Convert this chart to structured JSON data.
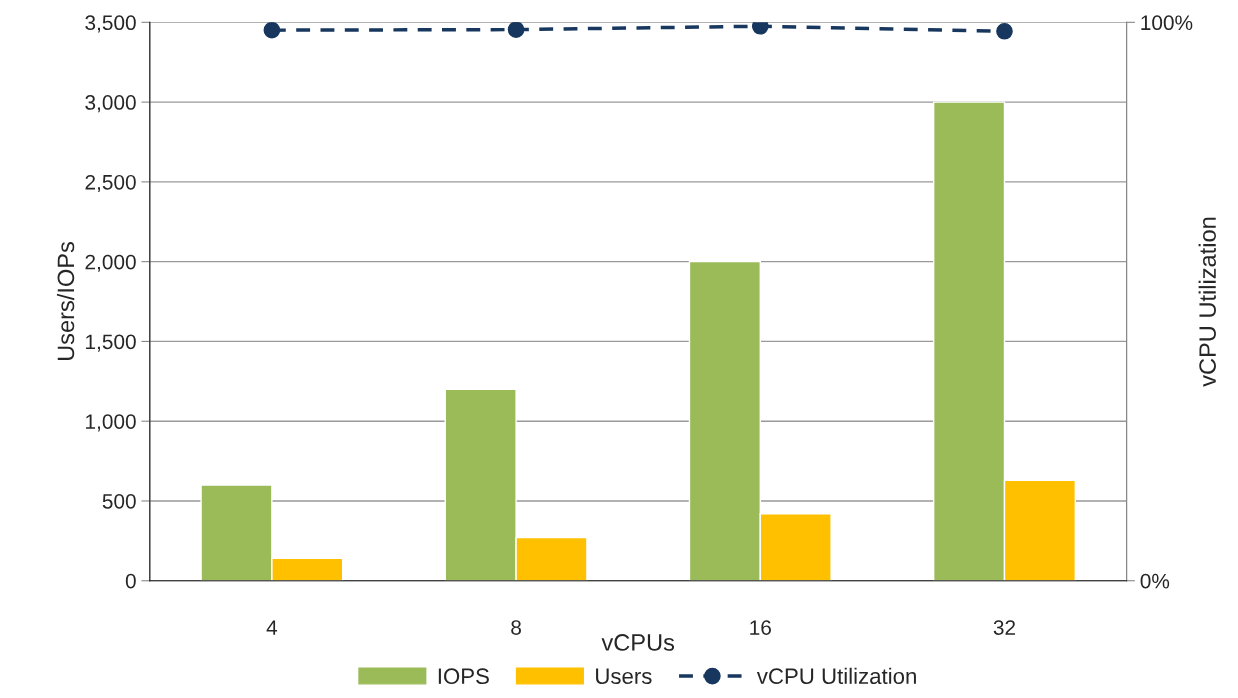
{
  "chart_data": {
    "type": "bar",
    "xlabel": "vCPUs",
    "ylabel": "Users/IOPs",
    "y2label": "vCPU Utilization",
    "categories": [
      "4",
      "8",
      "16",
      "32"
    ],
    "series": [
      {
        "name": "IOPS",
        "color": "#9bbb59",
        "values": [
          600,
          1200,
          2000,
          3000
        ]
      },
      {
        "name": "Users",
        "color": "#ffc000",
        "values": [
          140,
          270,
          420,
          630
        ]
      },
      {
        "name": "vCPU Utilization",
        "type": "line",
        "axis": "y2",
        "color": "#17375e",
        "marker": "circle",
        "line_style": "dashed",
        "values": [
          98.6,
          98.7,
          99.3,
          98.4
        ]
      }
    ],
    "ylim": [
      0,
      3500
    ],
    "yticks": [
      0,
      500,
      {
        "value": 1000,
        "label": "1,000"
      },
      {
        "value": 1500,
        "label": "1,500"
      },
      {
        "value": 2000,
        "label": "2,000"
      },
      {
        "value": 2500,
        "label": "2,500"
      },
      {
        "value": 3000,
        "label": "3,000"
      },
      {
        "value": 3500,
        "label": "3,500"
      }
    ],
    "y2lim": [
      0,
      100
    ],
    "y2ticks": [
      {
        "value": 0,
        "label": "0%"
      },
      {
        "value": 100,
        "label": "100%"
      }
    ],
    "grid": "y",
    "legend": "bottom"
  }
}
